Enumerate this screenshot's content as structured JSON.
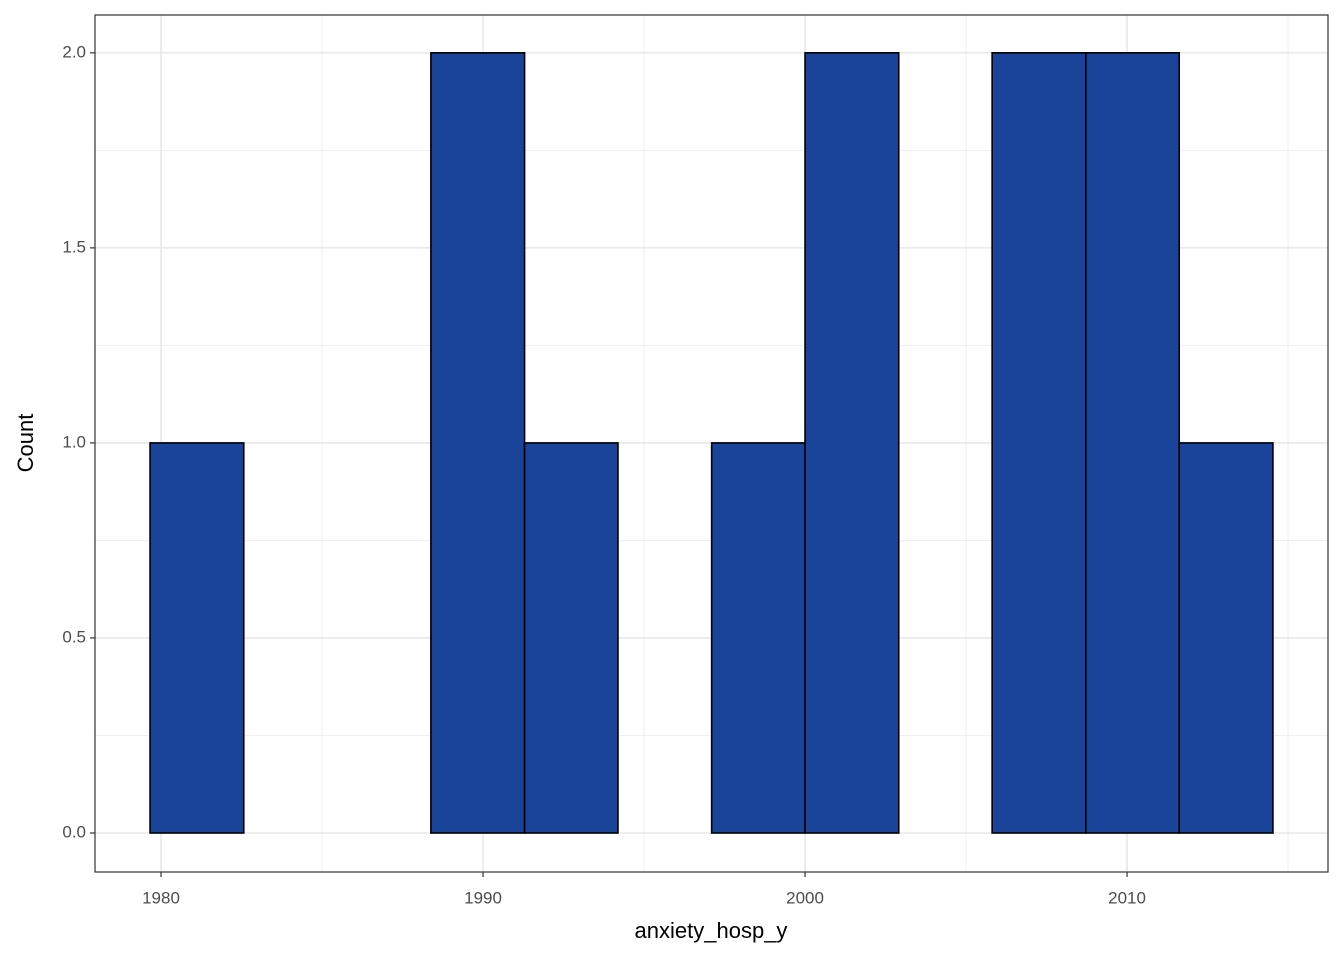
{
  "chart_data": {
    "type": "histogram",
    "x_label": "anxiety_hosp_y",
    "y_label": "Count",
    "bins": [
      1979.66,
      1982.57,
      1985.47,
      1988.38,
      1991.29,
      1994.19,
      1997.1,
      2000.0,
      2002.91,
      2005.81,
      2008.72,
      2011.62,
      2014.53
    ],
    "values": [
      1,
      0,
      0,
      2,
      1,
      0,
      1,
      2,
      0,
      2,
      2,
      1
    ],
    "color": "#1a4499",
    "edge_color": "#000000",
    "xlim": [
      1977.95,
      2016.24
    ],
    "xticks": [
      1980,
      1990,
      2000,
      2010
    ],
    "ylim": [
      -0.1,
      2.097
    ],
    "yticks": [
      {
        "value": 0,
        "label": "0.0"
      },
      {
        "value": 0.5,
        "label": "0.5"
      },
      {
        "value": 1,
        "label": "1.0"
      },
      {
        "value": 1.5,
        "label": "1.5"
      },
      {
        "value": 2,
        "label": "2.0"
      }
    ],
    "grid": true
  }
}
